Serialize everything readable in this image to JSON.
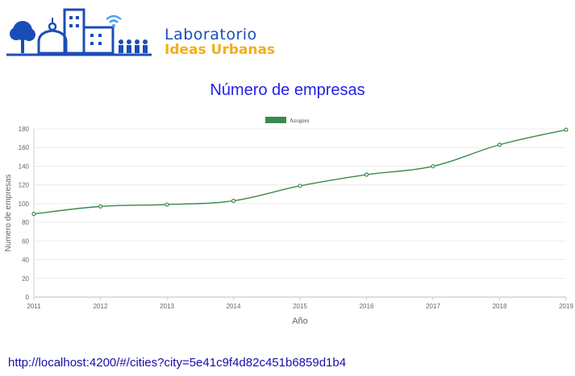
{
  "header": {
    "logo_line1": "Laboratorio",
    "logo_line2": "Ideas Urbanas",
    "colors": {
      "brand_blue": "#1b4db8",
      "brand_orange": "#f2ae1c",
      "wifi_blue": "#4ba3f2"
    }
  },
  "footer": {
    "url": "http://localhost:4200/#/cities?city=5e41c9f4d82c451b6859d1b4"
  },
  "chart_data": {
    "type": "line",
    "title": "Número de empresas",
    "xlabel": "Año",
    "ylabel": "Numero de empresas",
    "x": [
      "2011",
      "2012",
      "2013",
      "2014",
      "2015",
      "2016",
      "2017",
      "2018",
      "2019"
    ],
    "series": [
      {
        "name": "Azogues",
        "values": [
          89,
          97,
          99,
          103,
          119,
          131,
          140,
          163,
          179
        ],
        "color": "#3a8a4a"
      }
    ],
    "yticks": [
      0,
      20,
      40,
      60,
      80,
      100,
      120,
      140,
      160,
      180
    ],
    "ylim": [
      0,
      180
    ],
    "grid": true,
    "legend": "top-center"
  }
}
